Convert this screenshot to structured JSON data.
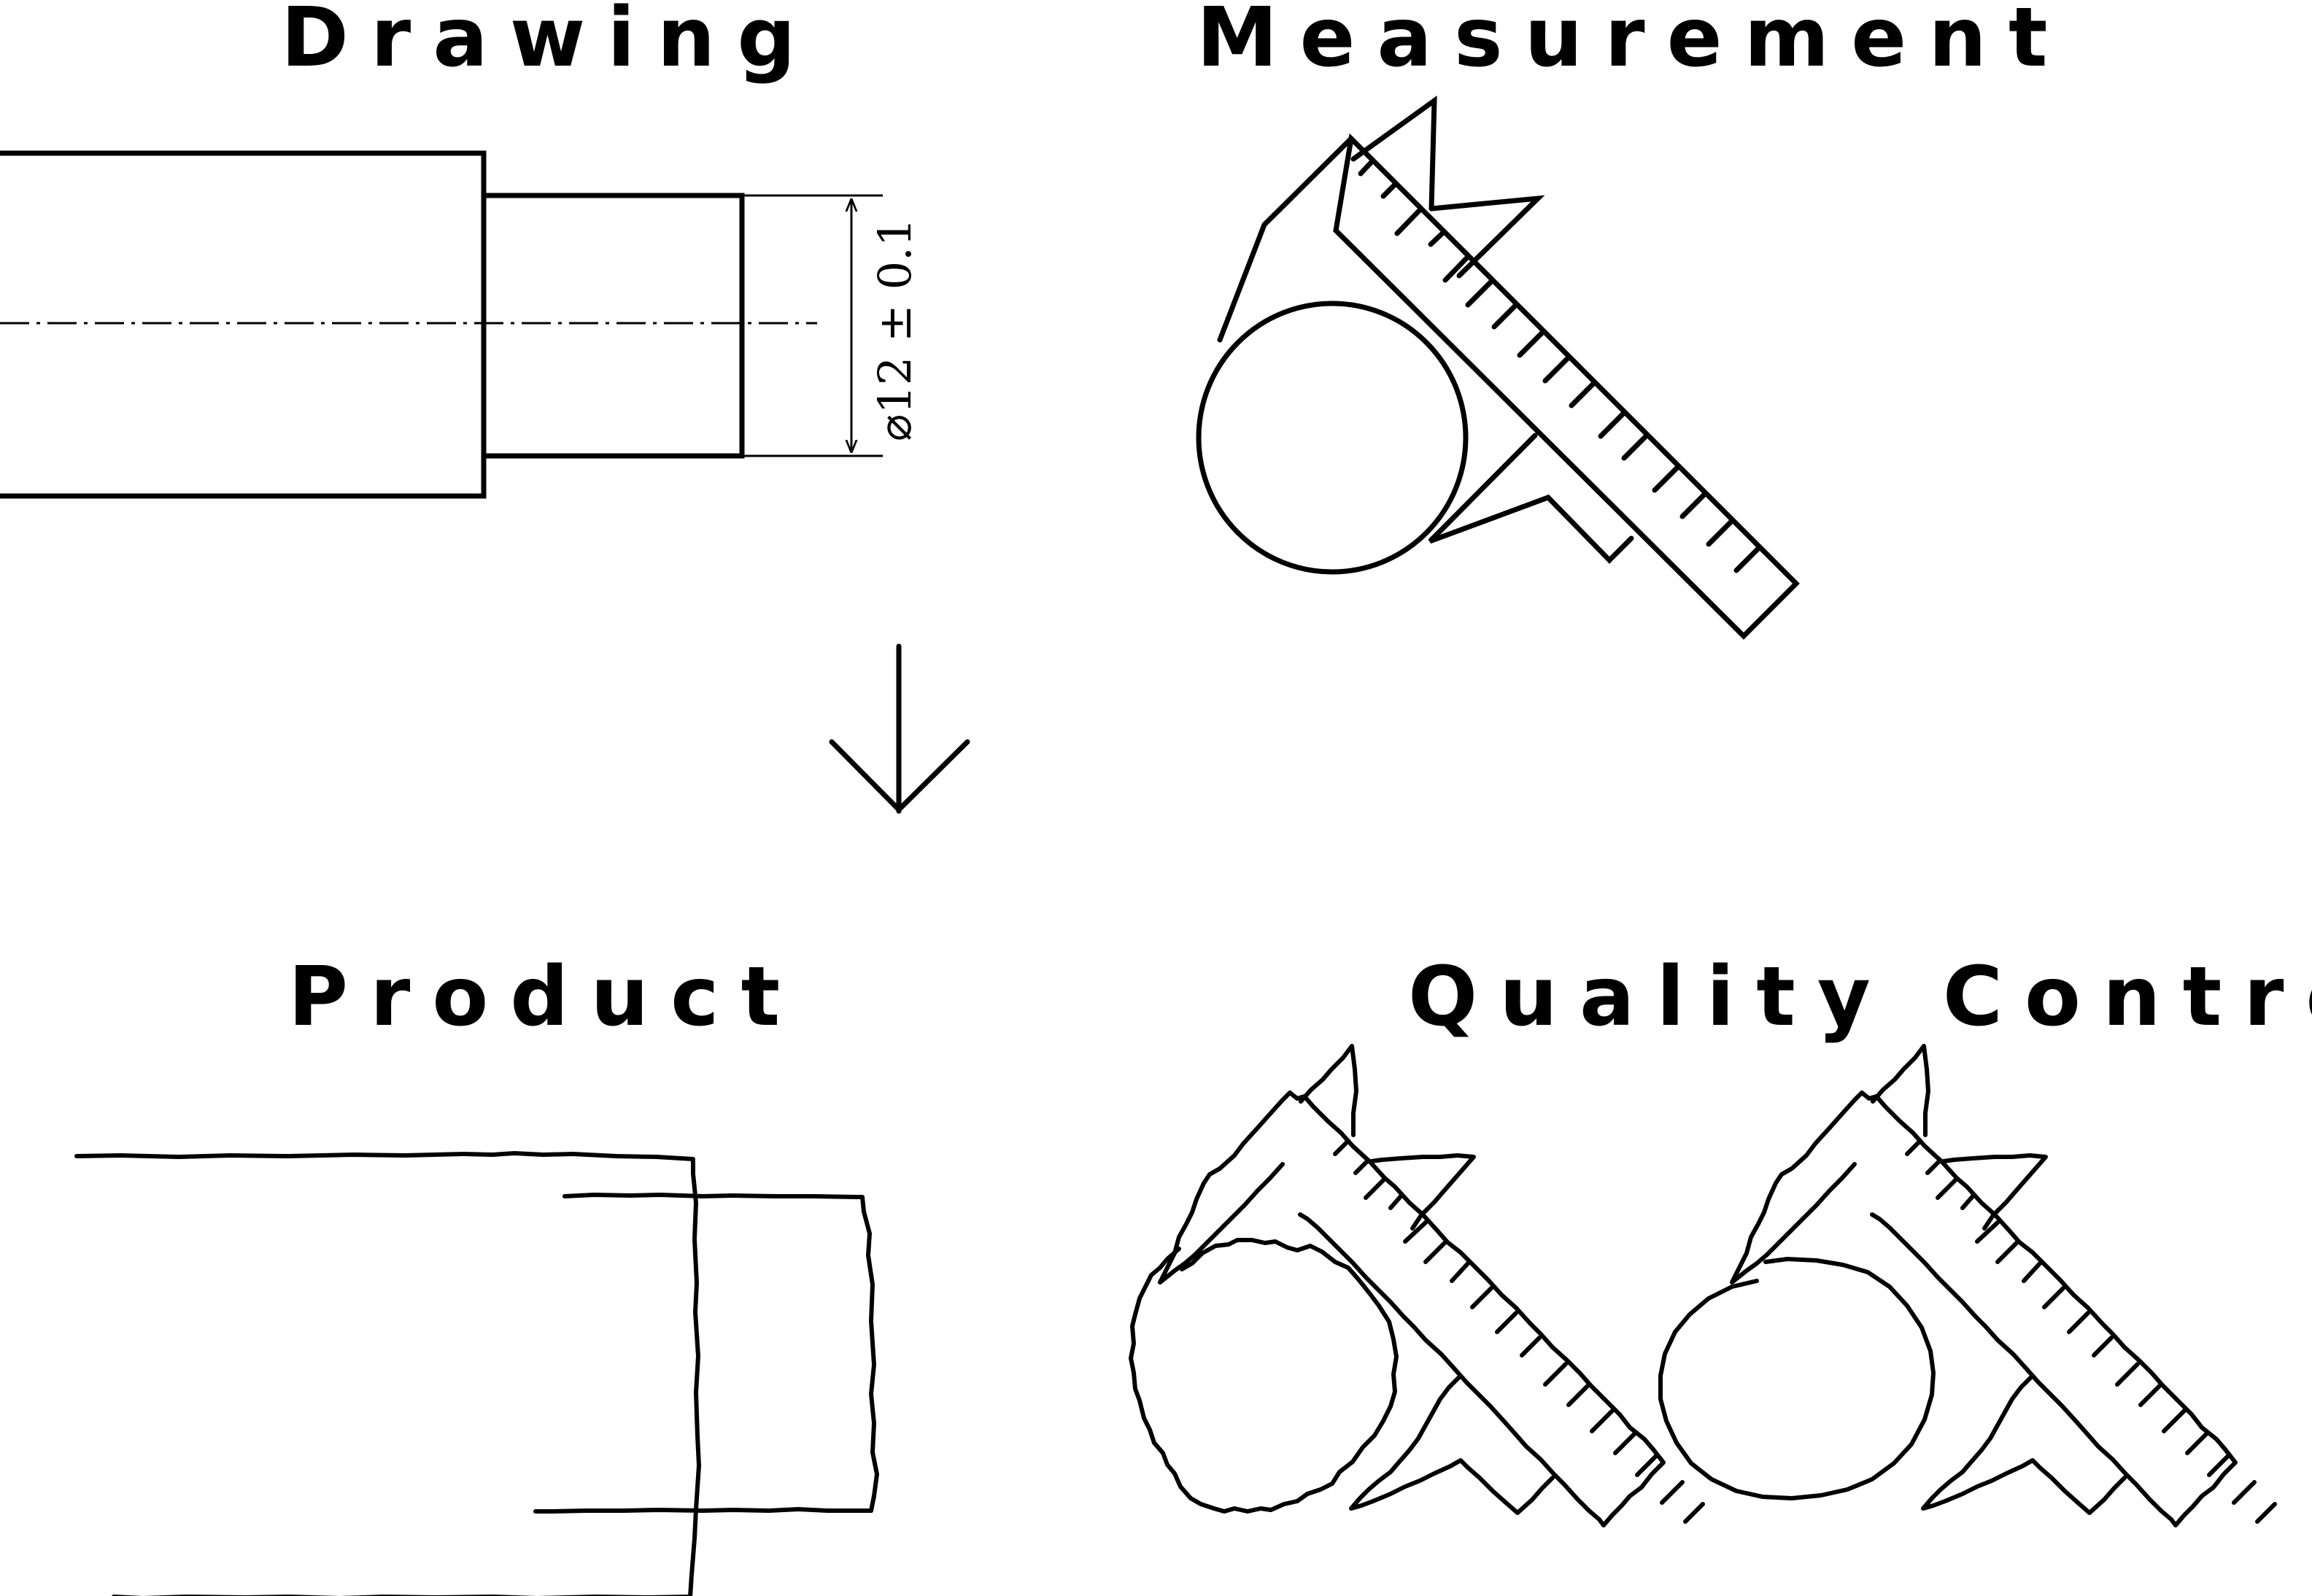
{
  "panels": {
    "drawing": {
      "title": "Drawing",
      "dimension": "⌀12 ± 0.1"
    },
    "measurement": {
      "title": "Measurement"
    },
    "product": {
      "title": "Product"
    },
    "quality": {
      "title": "Quality Control"
    }
  }
}
